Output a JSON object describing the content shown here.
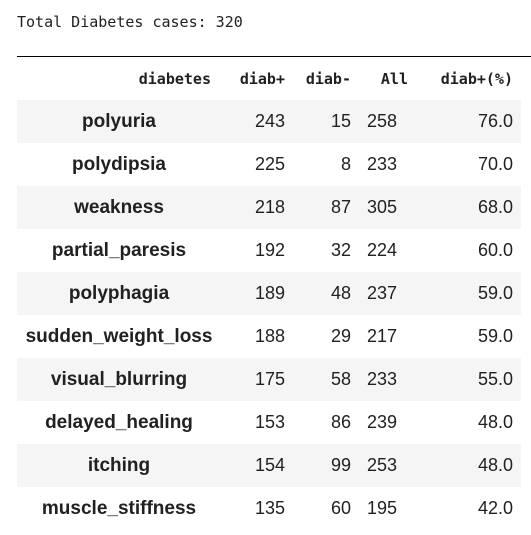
{
  "output": {
    "summary_text": "Total Diabetes cases: 320"
  },
  "table": {
    "columns": [
      "diabetes",
      "diab+",
      "diab-",
      "All",
      "diab+(%)"
    ],
    "rows": [
      {
        "label": "polyuria",
        "diab_pos": "243",
        "diab_neg": "15",
        "all": "258",
        "pct": "76.0"
      },
      {
        "label": "polydipsia",
        "diab_pos": "225",
        "diab_neg": "8",
        "all": "233",
        "pct": "70.0"
      },
      {
        "label": "weakness",
        "diab_pos": "218",
        "diab_neg": "87",
        "all": "305",
        "pct": "68.0"
      },
      {
        "label": "partial_paresis",
        "diab_pos": "192",
        "diab_neg": "32",
        "all": "224",
        "pct": "60.0"
      },
      {
        "label": "polyphagia",
        "diab_pos": "189",
        "diab_neg": "48",
        "all": "237",
        "pct": "59.0"
      },
      {
        "label": "sudden_weight_loss",
        "diab_pos": "188",
        "diab_neg": "29",
        "all": "217",
        "pct": "59.0"
      },
      {
        "label": "visual_blurring",
        "diab_pos": "175",
        "diab_neg": "58",
        "all": "233",
        "pct": "55.0"
      },
      {
        "label": "delayed_healing",
        "diab_pos": "153",
        "diab_neg": "86",
        "all": "239",
        "pct": "48.0"
      },
      {
        "label": "itching",
        "diab_pos": "154",
        "diab_neg": "99",
        "all": "253",
        "pct": "48.0"
      },
      {
        "label": "muscle_stiffness",
        "diab_pos": "135",
        "diab_neg": "60",
        "all": "195",
        "pct": "42.0"
      }
    ]
  }
}
